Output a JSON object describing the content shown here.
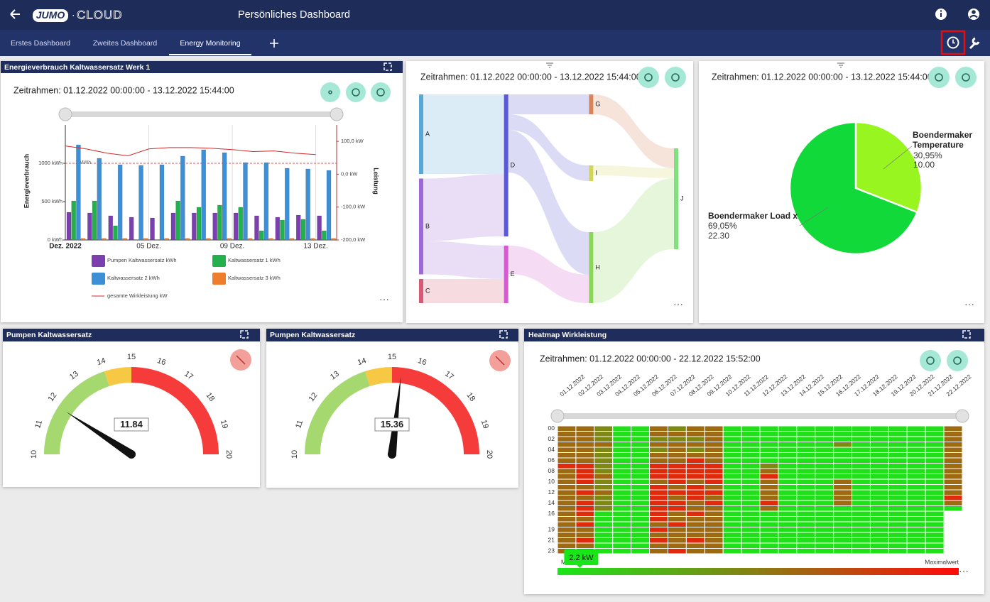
{
  "header": {
    "logo": "JUMO",
    "logo_suffix": "CLOUD",
    "title": "Persönliches Dashboard"
  },
  "tabs": {
    "items": [
      "Erstes Dashboard",
      "Zweites Dashboard",
      "Energy Monitoring"
    ],
    "active": 2
  },
  "chart_data": [
    {
      "type": "bar",
      "title": "Energieverbrauch Kaltwassersatz Werk 1",
      "timeframe": "Zeitrahmen: 01.12.2022 00:00:00 - 13.12.2022 15:44:00",
      "ylabel": "Energieverbrauch",
      "y2label": "Leistung",
      "categories": [
        "Dez. 2022",
        null,
        null,
        null,
        "05 Dez.",
        null,
        null,
        null,
        "09 Dez.",
        null,
        null,
        null,
        "13 Dez."
      ],
      "series": [
        {
          "name": "Pumpen Kaltwassersatz  kWh",
          "color": "#7b3fb0",
          "values": [
            361,
            352,
            315,
            296,
            287,
            352,
            352,
            352,
            352,
            315,
            296,
            324,
            315
          ]
        },
        {
          "name": "Kaltwassersatz 1  kWh",
          "color": "#22b14c",
          "values": [
            509,
            509,
            185,
            0,
            0,
            509,
            426,
            454,
            426,
            120,
            259,
            269,
            120
          ]
        },
        {
          "name": "Kaltwassersatz 2  kWh",
          "color": "#3d8fd6",
          "values": [
            1241,
            1065,
            981,
            972,
            981,
            1093,
            1176,
            1139,
            1009,
            1009,
            935,
            926,
            907
          ]
        },
        {
          "name": "Kaltwassersatz 3  kWh",
          "color": "#ee7d2d",
          "values": [
            20,
            20,
            20,
            20,
            20,
            20,
            20,
            20,
            20,
            20,
            20,
            20,
            20
          ]
        },
        {
          "name": "gesamte Wirkleistung  kW",
          "color": "#d62728",
          "type": "line",
          "axis": "y2",
          "values": [
            86,
            77,
            64,
            56,
            77,
            81,
            81,
            79,
            75,
            69,
            71,
            64,
            60
          ]
        }
      ],
      "ylim": [
        0,
        1500
      ],
      "yticks": [
        {
          "value": 0,
          "label": "0 kWh"
        },
        {
          "value": 500,
          "label": "500 kWh"
        },
        {
          "value": 1000,
          "label": "1000 kWh"
        }
      ],
      "y2lim": [
        -200,
        150
      ],
      "y2ticks": [
        {
          "value": -200,
          "label": "-200,0 kW"
        },
        {
          "value": -100,
          "label": "-100,0 kW"
        },
        {
          "value": 0,
          "label": "0,0 kW"
        },
        {
          "value": 100,
          "label": "100,0 kW"
        }
      ],
      "reference_line": {
        "value": 1000,
        "label": "1 MWh"
      },
      "grid": true
    },
    {
      "type": "sankey",
      "timeframe": "Zeitrahmen: 01.12.2022 00:00:00 - 13.12.2022 15:44:00",
      "nodes": [
        {
          "name": "A",
          "color": "#5aa7d6"
        },
        {
          "name": "B",
          "color": "#9b6ad6"
        },
        {
          "name": "C",
          "color": "#d65a78"
        },
        {
          "name": "D",
          "color": "#5a5ad6"
        },
        {
          "name": "E",
          "color": "#d65ad0"
        },
        {
          "name": "G",
          "color": "#d6845a"
        },
        {
          "name": "I",
          "color": "#d0d65a"
        },
        {
          "name": "H",
          "color": "#8ad65a"
        },
        {
          "name": "J",
          "color": "#7ee07e"
        }
      ],
      "links": [
        {
          "source": "A",
          "target": "D",
          "value": 112
        },
        {
          "source": "B",
          "target": "D",
          "value": 88
        },
        {
          "source": "B",
          "target": "E",
          "value": 47
        },
        {
          "source": "C",
          "target": "E",
          "value": 34
        },
        {
          "source": "D",
          "target": "G",
          "value": 28
        },
        {
          "source": "D",
          "target": "I",
          "value": 22
        },
        {
          "source": "D",
          "target": "H",
          "value": 60
        },
        {
          "source": "E",
          "target": "H",
          "value": 40
        },
        {
          "source": "G",
          "target": "J",
          "value": 28
        },
        {
          "source": "I",
          "target": "J",
          "value": 14
        },
        {
          "source": "H",
          "target": "J",
          "value": 100
        }
      ]
    },
    {
      "type": "pie",
      "timeframe": "Zeitrahmen: 01.12.2022 00:00:00 - 13.12.2022 15:44:00",
      "categories": [
        "Boendermaker Temperature",
        "Boendermaker Load x"
      ],
      "values": [
        10,
        22.3
      ],
      "value_labels": [
        "10.00",
        "22.30"
      ],
      "percentages": [
        30.95,
        69.05
      ],
      "percentage_labels": [
        "30,95%",
        "69,05%"
      ],
      "colors": [
        "#99f51f",
        "#12d93a"
      ]
    },
    {
      "type": "gauge",
      "title": "Pumpen Kaltwassersatz",
      "value": 11.84,
      "lim": [
        10,
        20
      ],
      "ticks": [
        10,
        11,
        12,
        13,
        14,
        15,
        16,
        17,
        18,
        19,
        20
      ],
      "bands": [
        {
          "from": 10,
          "to": 14,
          "color": "#a5d86e"
        },
        {
          "from": 14,
          "to": 15,
          "color": "#f7c843"
        },
        {
          "from": 15,
          "to": 20,
          "color": "#f63b3b"
        }
      ]
    },
    {
      "type": "gauge",
      "title": "Pumpen Kaltwassersatz",
      "value": 15.36,
      "lim": [
        10,
        20
      ],
      "ticks": [
        10,
        11,
        12,
        13,
        14,
        15,
        16,
        17,
        18,
        19,
        20
      ],
      "bands": [
        {
          "from": 10,
          "to": 14,
          "color": "#a5d86e"
        },
        {
          "from": 14,
          "to": 15,
          "color": "#f7c843"
        },
        {
          "from": 15,
          "to": 20,
          "color": "#f63b3b"
        }
      ]
    },
    {
      "type": "heatmap",
      "title": "Heatmap Wirkleistung",
      "timeframe": "Zeitrahmen: 01.12.2022 00:00:00 - 22.12.2022 15:52:00",
      "x": [
        "01.12.2022",
        "02.12.2022",
        "03.12.2022",
        "04.12.2022",
        "05.12.2022",
        "06.12.2022",
        "07.12.2022",
        "08.12.2022",
        "09.12.2022",
        "10.12.2022",
        "11.12.2022",
        "12.12.2022",
        "13.12.2022",
        "14.12.2022",
        "15.12.2022",
        "16.12.2022",
        "17.12.2022",
        "18.12.2022",
        "19.12.2022",
        "20.12.2022",
        "21.12.2022",
        "22.12.2022"
      ],
      "y": [
        "00",
        null,
        "02",
        null,
        "04",
        null,
        "06",
        null,
        "08",
        null,
        "10",
        null,
        "12",
        null,
        "14",
        null,
        "16",
        null,
        null,
        "19",
        null,
        "21",
        null,
        "23"
      ],
      "values": [
        [
          6,
          6,
          5,
          2,
          2,
          6,
          5,
          6,
          6,
          2,
          2,
          2,
          2,
          2,
          2,
          2,
          2,
          2,
          2,
          2,
          2,
          6
        ],
        [
          6,
          6,
          5,
          2,
          2,
          6,
          6,
          6,
          6,
          2,
          2,
          2,
          2,
          2,
          2,
          2,
          2,
          2,
          2,
          2,
          2,
          6
        ],
        [
          6,
          6,
          5,
          2,
          2,
          5,
          5,
          5,
          6,
          2,
          2,
          2,
          2,
          2,
          2,
          2,
          2,
          2,
          2,
          2,
          2,
          6
        ],
        [
          6,
          6,
          6,
          2,
          2,
          6,
          6,
          6,
          6,
          2,
          2,
          2,
          2,
          2,
          2,
          5,
          2,
          2,
          2,
          2,
          2,
          6
        ],
        [
          6,
          6,
          5,
          2,
          2,
          5,
          6,
          5,
          6,
          2,
          2,
          2,
          2,
          2,
          2,
          2,
          2,
          2,
          2,
          2,
          2,
          6
        ],
        [
          6,
          6,
          5,
          2,
          2,
          6,
          6,
          6,
          6,
          2,
          2,
          2,
          2,
          2,
          2,
          2,
          2,
          2,
          2,
          2,
          2,
          6
        ],
        [
          6,
          6,
          5,
          2,
          2,
          6,
          6,
          8,
          6,
          2,
          2,
          2,
          2,
          2,
          2,
          2,
          2,
          2,
          2,
          2,
          2,
          6
        ],
        [
          8,
          8,
          5,
          2,
          2,
          8,
          8,
          8,
          8,
          2,
          2,
          5,
          2,
          2,
          2,
          2,
          2,
          2,
          2,
          2,
          2,
          6
        ],
        [
          6,
          8,
          5,
          2,
          2,
          8,
          8,
          8,
          8,
          2,
          2,
          6,
          2,
          2,
          2,
          2,
          2,
          2,
          2,
          2,
          2,
          6
        ],
        [
          6,
          8,
          6,
          2,
          2,
          8,
          8,
          8,
          8,
          2,
          2,
          8,
          2,
          2,
          2,
          2,
          2,
          2,
          2,
          2,
          2,
          6
        ],
        [
          6,
          8,
          5,
          2,
          2,
          6,
          8,
          6,
          8,
          2,
          2,
          6,
          2,
          2,
          2,
          6,
          2,
          2,
          2,
          2,
          2,
          6
        ],
        [
          6,
          6,
          5,
          2,
          2,
          8,
          6,
          8,
          6,
          2,
          2,
          6,
          2,
          2,
          2,
          6,
          2,
          2,
          2,
          2,
          2,
          6
        ],
        [
          6,
          8,
          6,
          2,
          2,
          8,
          8,
          8,
          8,
          2,
          2,
          6,
          2,
          2,
          2,
          6,
          2,
          2,
          2,
          2,
          2,
          6
        ],
        [
          6,
          6,
          5,
          2,
          2,
          8,
          6,
          8,
          6,
          2,
          2,
          6,
          2,
          2,
          2,
          6,
          2,
          2,
          2,
          2,
          2,
          8
        ],
        [
          6,
          8,
          5,
          2,
          2,
          8,
          8,
          6,
          8,
          2,
          2,
          8,
          2,
          2,
          2,
          6,
          2,
          2,
          2,
          2,
          2,
          6
        ],
        [
          6,
          8,
          5,
          2,
          2,
          8,
          8,
          6,
          6,
          2,
          2,
          6,
          2,
          2,
          2,
          2,
          2,
          2,
          2,
          2,
          2,
          2
        ],
        [
          6,
          8,
          2,
          2,
          2,
          8,
          6,
          8,
          6,
          2,
          2,
          2,
          2,
          2,
          2,
          2,
          2,
          2,
          2,
          2,
          2,
          null
        ],
        [
          6,
          6,
          2,
          2,
          2,
          8,
          6,
          6,
          6,
          2,
          2,
          2,
          2,
          2,
          2,
          2,
          2,
          2,
          2,
          2,
          2,
          null
        ],
        [
          6,
          8,
          2,
          2,
          2,
          6,
          8,
          6,
          6,
          2,
          2,
          2,
          2,
          2,
          2,
          2,
          2,
          2,
          2,
          2,
          2,
          null
        ],
        [
          6,
          6,
          2,
          2,
          2,
          8,
          6,
          6,
          6,
          2,
          2,
          2,
          2,
          2,
          2,
          2,
          2,
          2,
          2,
          2,
          2,
          null
        ],
        [
          6,
          6,
          2,
          2,
          2,
          6,
          6,
          6,
          6,
          2,
          2,
          2,
          2,
          2,
          2,
          2,
          2,
          2,
          2,
          2,
          2,
          null
        ],
        [
          6,
          8,
          2,
          2,
          2,
          8,
          6,
          8,
          6,
          2,
          2,
          2,
          2,
          2,
          2,
          2,
          2,
          2,
          2,
          2,
          2,
          null
        ],
        [
          6,
          6,
          2,
          2,
          2,
          6,
          6,
          6,
          6,
          2,
          2,
          2,
          2,
          2,
          2,
          2,
          2,
          2,
          2,
          2,
          2,
          null
        ],
        [
          6,
          6,
          2,
          2,
          2,
          6,
          8,
          6,
          6,
          2,
          2,
          2,
          2,
          2,
          2,
          2,
          2,
          2,
          2,
          2,
          2,
          null
        ]
      ],
      "zlim": [
        1.8,
        9
      ],
      "colorscale": [
        "#19e619",
        "#8a7d12",
        "#ff0a0a"
      ],
      "legend_min": "Minimalwert",
      "legend_max": "Maximalwert",
      "tooltip": {
        "value": 2.2,
        "label": "2.2 kW"
      }
    }
  ]
}
